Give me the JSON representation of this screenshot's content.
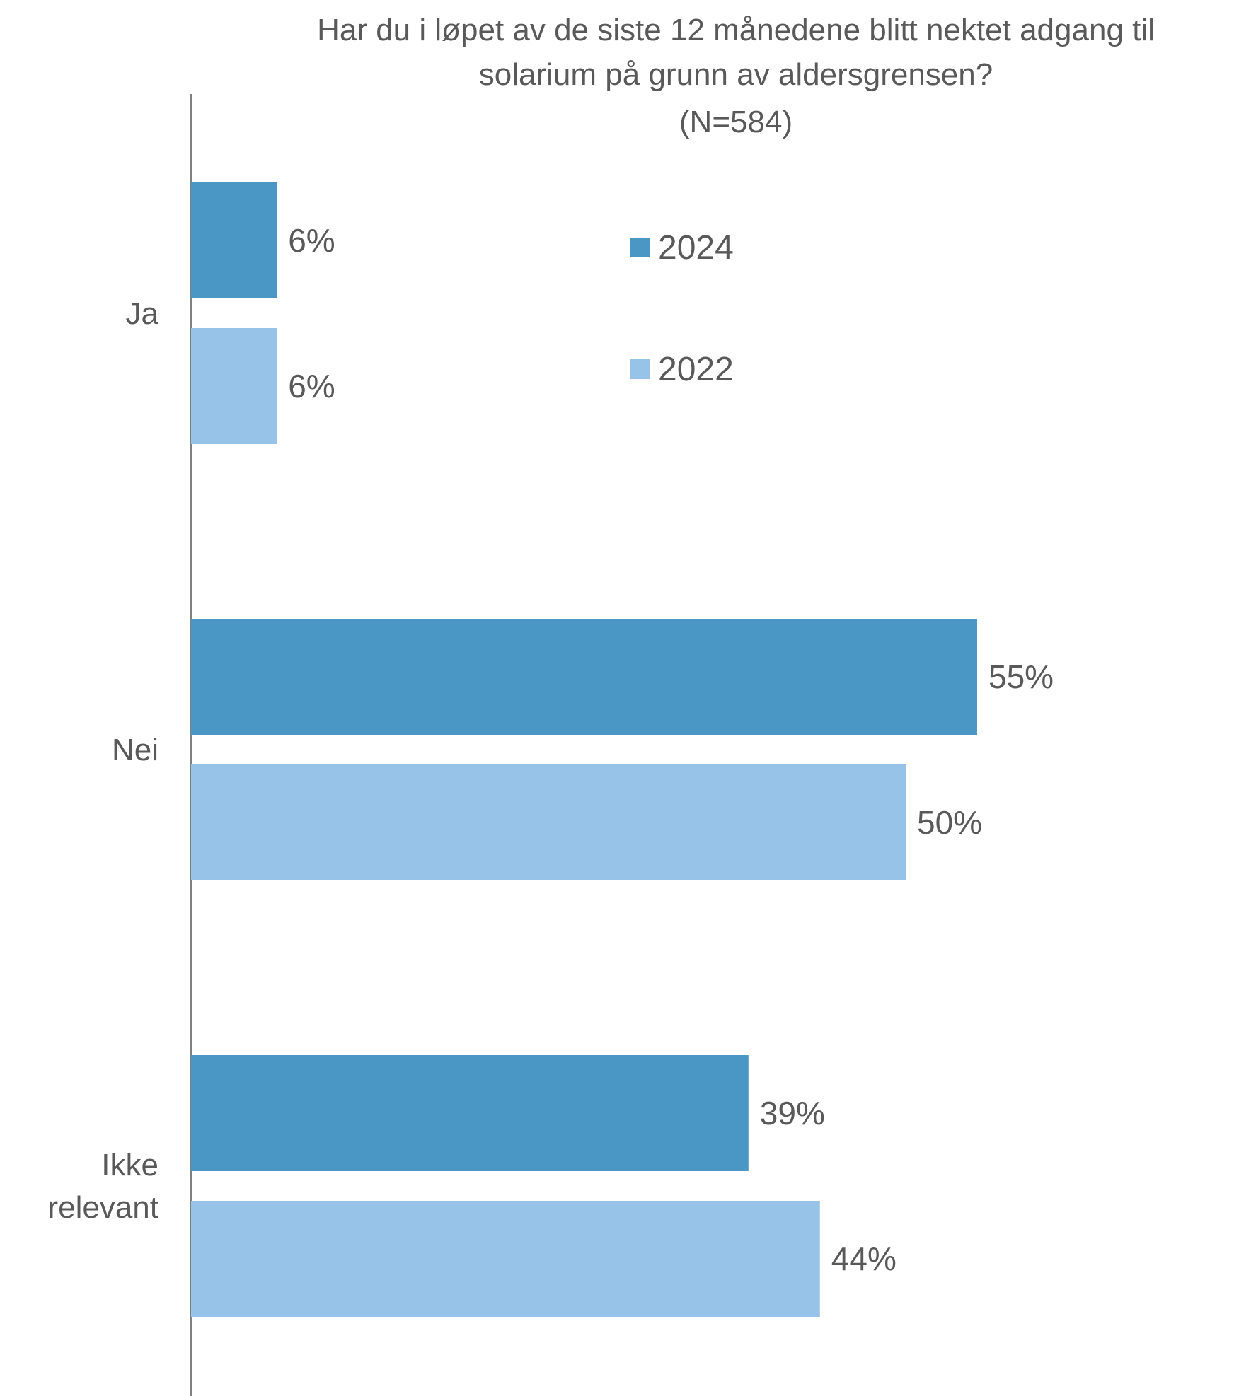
{
  "chart_data": {
    "type": "bar",
    "orientation": "horizontal",
    "title_lines": [
      "Har du i løpet av de siste 12 månedene blitt nektet adgang til",
      "solarium på grunn av aldersgrensen?",
      "(N=584)"
    ],
    "categories": [
      {
        "lines": [
          "Ja"
        ]
      },
      {
        "lines": [
          "Nei"
        ]
      },
      {
        "lines": [
          "Ikke",
          "relevant"
        ]
      }
    ],
    "series": [
      {
        "name": "2024",
        "color": "#4A96C5",
        "values": [
          6,
          55,
          39
        ],
        "labels": [
          "6%",
          "55%",
          "39%"
        ]
      },
      {
        "name": "2022",
        "color": "#98C3E8",
        "values": [
          6,
          50,
          44
        ],
        "labels": [
          "6%",
          "50%",
          "44%"
        ]
      }
    ],
    "xlim": [
      0,
      60
    ],
    "grid": false,
    "legend_position": "top-center"
  }
}
